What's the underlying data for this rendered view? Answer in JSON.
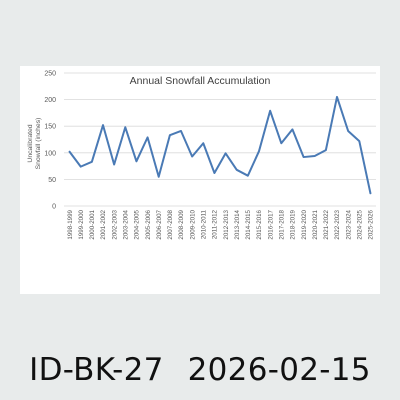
{
  "caption": {
    "id": "ID-BK-27",
    "date": "2026-02-15"
  },
  "colors": {
    "background": "#e8ebeb",
    "card": "#ffffff",
    "line": "#4a7ab5",
    "grid": "#d9d9d9",
    "text": "#595959"
  },
  "chart_data": {
    "type": "line",
    "title": "Annual Snowfall Accumulation",
    "xlabel": "",
    "ylabel": "Uncalibrated Snowfall (inches)",
    "ylim": [
      0,
      250
    ],
    "yticks": [
      0,
      50,
      100,
      150,
      200,
      250
    ],
    "grid": true,
    "legend": "none",
    "categories": [
      "1998-1999",
      "1999-2000",
      "2000-2001",
      "2001-2002",
      "2002-2003",
      "2003-2004",
      "2004-2005",
      "2005-2006",
      "2006-2007",
      "2007-2008",
      "2008-2009",
      "2009-2010",
      "2010-2011",
      "2011-2012",
      "2012-2013",
      "2013-2014",
      "2014-2015",
      "2015-2016",
      "2016-2017",
      "2017-2018",
      "2018-2019",
      "2019-2020",
      "2020-2021",
      "2021-2022",
      "2022-2023",
      "2023-2024",
      "2024-2025",
      "2025-2026"
    ],
    "values": [
      102,
      74,
      83,
      152,
      78,
      148,
      84,
      129,
      55,
      133,
      141,
      93,
      118,
      62,
      99,
      68,
      57,
      103,
      179,
      118,
      144,
      92,
      94,
      105,
      205,
      141,
      122,
      24
    ]
  }
}
